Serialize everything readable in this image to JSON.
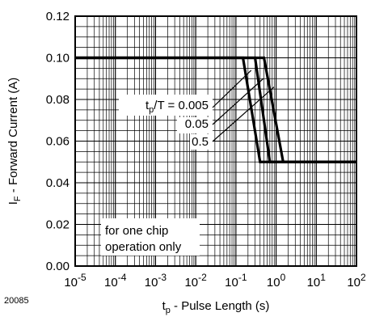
{
  "chart_data": {
    "type": "line",
    "figure_id": "20085",
    "xlabel_main": "t",
    "xlabel_sub": "p",
    "xlabel_rest": " - Pulse Length (s)",
    "ylabel_main": "I",
    "ylabel_sub": "F",
    "ylabel_rest": " - Forward Current (A)",
    "xscale": "log",
    "xlim": [
      1e-05,
      100
    ],
    "ylim": [
      0.0,
      0.12
    ],
    "grid": true,
    "x_ticks": [
      {
        "base": "10",
        "exp": "-5"
      },
      {
        "base": "10",
        "exp": "-4"
      },
      {
        "base": "10",
        "exp": "-3"
      },
      {
        "base": "10",
        "exp": "-2"
      },
      {
        "base": "10",
        "exp": "-1"
      },
      {
        "base": "10",
        "exp": "0"
      },
      {
        "base": "10",
        "exp": "1"
      },
      {
        "base": "10",
        "exp": "2"
      }
    ],
    "y_ticks": [
      "0.00",
      "0.02",
      "0.04",
      "0.06",
      "0.08",
      "0.10",
      "0.12"
    ],
    "legend_title_main": "t",
    "legend_title_sub": "p",
    "legend_title_rest": "/T = 0.005",
    "series": [
      {
        "name": "0.005",
        "x": [
          1e-05,
          0.15,
          0.4,
          100
        ],
        "y": [
          0.1,
          0.1,
          0.05,
          0.05
        ]
      },
      {
        "name": "0.05",
        "x": [
          1e-05,
          0.3,
          0.7,
          100
        ],
        "y": [
          0.1,
          0.1,
          0.05,
          0.05
        ]
      },
      {
        "name": "0.5",
        "x": [
          1e-05,
          0.5,
          1.5,
          100
        ],
        "y": [
          0.1,
          0.1,
          0.05,
          0.05
        ]
      }
    ],
    "series_labels": [
      "0.05",
      "0.5"
    ],
    "note": [
      "for one chip",
      "operation only"
    ]
  }
}
